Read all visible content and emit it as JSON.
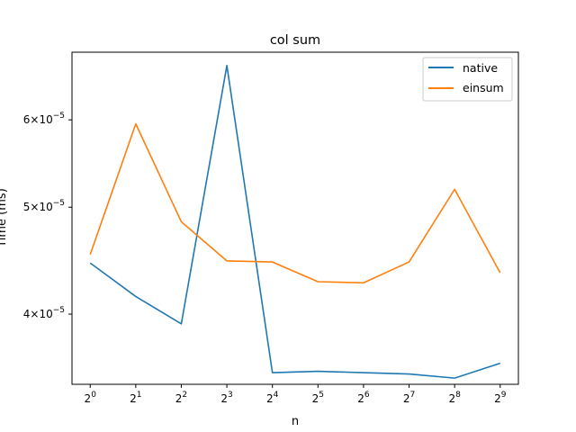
{
  "chart_data": {
    "type": "line",
    "title": "col sum",
    "xlabel": "n",
    "ylabel": "Time (ms)",
    "x_scale": "log2",
    "y_scale": "log",
    "x": [
      1,
      2,
      4,
      8,
      16,
      32,
      64,
      128,
      256,
      512
    ],
    "x_tick_labels": [
      {
        "base": "2",
        "exp": "0"
      },
      {
        "base": "2",
        "exp": "1"
      },
      {
        "base": "2",
        "exp": "2"
      },
      {
        "base": "2",
        "exp": "3"
      },
      {
        "base": "2",
        "exp": "4"
      },
      {
        "base": "2",
        "exp": "5"
      },
      {
        "base": "2",
        "exp": "6"
      },
      {
        "base": "2",
        "exp": "7"
      },
      {
        "base": "2",
        "exp": "8"
      },
      {
        "base": "2",
        "exp": "9"
      }
    ],
    "y_ticks": [
      {
        "value": 4e-05,
        "mantissa": "4",
        "times": "×",
        "base": "10",
        "exp": "−5"
      },
      {
        "value": 5e-05,
        "mantissa": "5",
        "times": "×",
        "base": "10",
        "exp": "−5"
      },
      {
        "value": 6e-05,
        "mantissa": "6",
        "times": "×",
        "base": "10",
        "exp": "−5"
      }
    ],
    "xlim": [
      0.7579,
      675.6
    ],
    "ylim": [
      3.455e-05,
      6.91e-05
    ],
    "grid": false,
    "legend_position": "top-right",
    "series": [
      {
        "name": "native",
        "color": "#1f77b4",
        "values": [
          4.45e-05,
          4.15e-05,
          3.92e-05,
          6.72e-05,
          3.54e-05,
          3.55e-05,
          3.54e-05,
          3.53e-05,
          3.5e-05,
          3.61e-05
        ]
      },
      {
        "name": "einsum",
        "color": "#ff7f0e",
        "values": [
          4.53e-05,
          5.95e-05,
          4.85e-05,
          4.47e-05,
          4.46e-05,
          4.28e-05,
          4.27e-05,
          4.46e-05,
          5.19e-05,
          4.36e-05
        ]
      }
    ]
  }
}
